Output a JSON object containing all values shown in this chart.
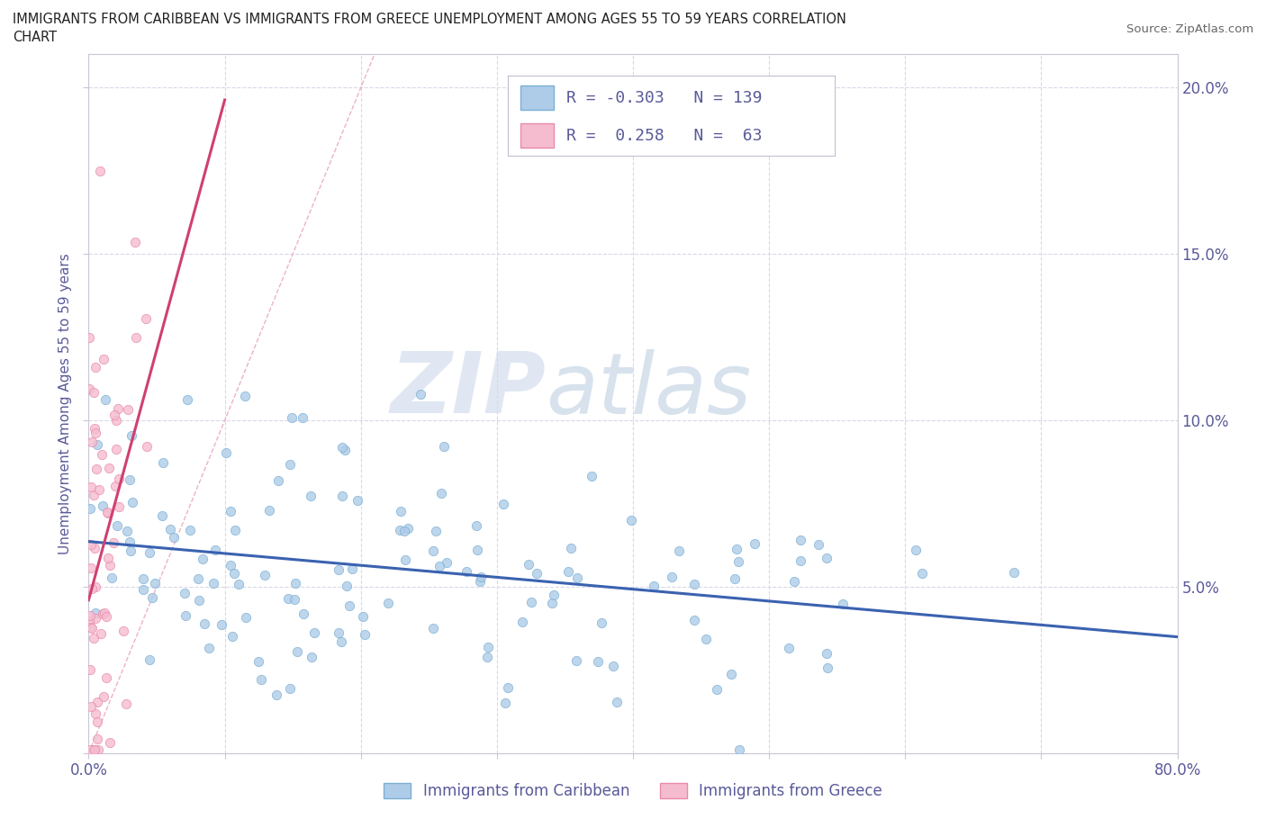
{
  "title": "IMMIGRANTS FROM CARIBBEAN VS IMMIGRANTS FROM GREECE UNEMPLOYMENT AMONG AGES 55 TO 59 YEARS CORRELATION\nCHART",
  "source_text": "Source: ZipAtlas.com",
  "ylabel": "Unemployment Among Ages 55 to 59 years",
  "xlim": [
    0.0,
    0.8
  ],
  "ylim": [
    0.0,
    0.21
  ],
  "xticks": [
    0.0,
    0.1,
    0.2,
    0.3,
    0.4,
    0.5,
    0.6,
    0.7,
    0.8
  ],
  "yticks": [
    0.0,
    0.05,
    0.1,
    0.15,
    0.2
  ],
  "caribbean_color": "#aecce8",
  "caribbean_edge": "#7aafd4",
  "greece_color": "#f5bcd0",
  "greece_edge": "#e88aaa",
  "trend_caribbean_color": "#3a62b0",
  "trend_greece_color": "#d04070",
  "diag_color": "#e8a0b8",
  "watermark_zip": "ZIP",
  "watermark_atlas": "atlas",
  "legend_R_caribbean": "-0.303",
  "legend_N_caribbean": "139",
  "legend_R_greece": "0.258",
  "legend_N_greece": "63",
  "legend_label_caribbean": "Immigrants from Caribbean",
  "legend_label_greece": "Immigrants from Greece",
  "axis_color": "#5a5a9a",
  "grid_color": "#d8d8e8",
  "background_color": "#ffffff",
  "caribbean_seed": 12345,
  "greece_seed": 67890
}
